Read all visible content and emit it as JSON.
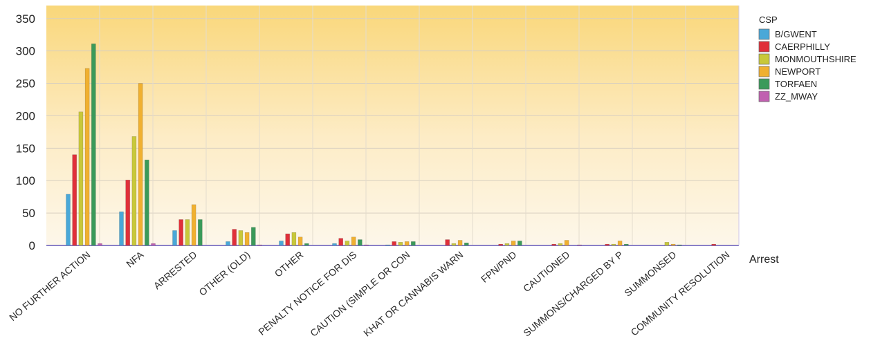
{
  "chart_data": {
    "type": "bar",
    "title": "",
    "xlabel": "Arrest",
    "ylabel": "",
    "ylim": [
      0,
      370
    ],
    "yticks": [
      0,
      50,
      100,
      150,
      200,
      250,
      300,
      350
    ],
    "grid": true,
    "legend_position": "right",
    "legend_title": "CSP",
    "categories": [
      "NO FURTHER ACTION",
      "NFA",
      "ARRESTED",
      "OTHER (OLD)",
      "OTHER",
      "PENALTY NOTICE FOR DIS",
      "CAUTION (SIMPLE OR CON",
      "KHAT OR CANNABIS WARN",
      "FPN/PND",
      "CAUTIONED",
      "SUMMONS/CHARGED BY P",
      "SUMMONSED",
      "COMMUNITY RESOLUTION"
    ],
    "series": [
      {
        "name": "B/GWENT",
        "color": "#4aa8d8",
        "values": [
          79,
          52,
          23,
          6,
          7,
          3,
          1,
          0,
          0,
          0,
          0,
          0,
          0
        ]
      },
      {
        "name": "CAERPHILLY",
        "color": "#e0303a",
        "values": [
          140,
          101,
          40,
          25,
          18,
          11,
          6,
          9,
          2,
          2,
          2,
          0,
          2
        ]
      },
      {
        "name": "MONMOUTHSHIRE",
        "color": "#c8c83a",
        "values": [
          206,
          168,
          40,
          23,
          20,
          7,
          5,
          3,
          3,
          3,
          2,
          5,
          0
        ]
      },
      {
        "name": "NEWPORT",
        "color": "#f0b030",
        "values": [
          273,
          250,
          63,
          20,
          13,
          13,
          6,
          8,
          7,
          8,
          7,
          2,
          0
        ]
      },
      {
        "name": "TORFAEN",
        "color": "#3a9a5a",
        "values": [
          311,
          132,
          40,
          28,
          3,
          9,
          6,
          4,
          7,
          0,
          2,
          1,
          0
        ]
      },
      {
        "name": "ZZ_MWAY",
        "color": "#c060b0",
        "values": [
          3,
          3,
          0,
          1,
          0,
          1,
          0,
          0,
          0,
          1,
          0,
          0,
          0
        ]
      }
    ]
  }
}
